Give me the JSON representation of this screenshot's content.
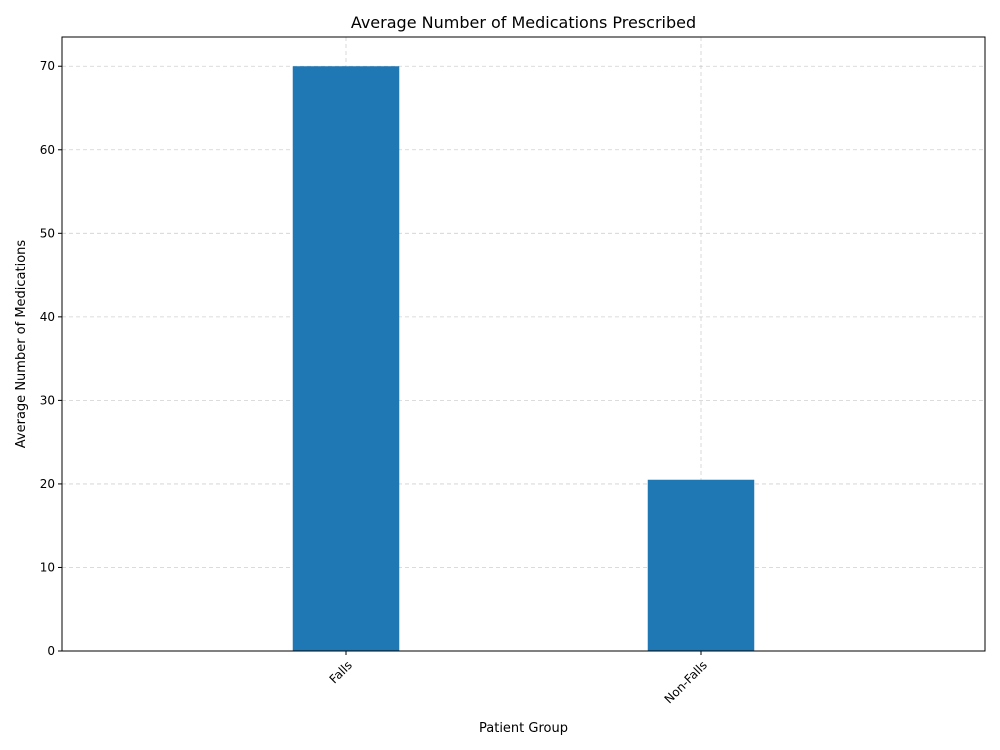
{
  "chart_data": {
    "type": "bar",
    "title": "Average Number of Medications Prescribed",
    "xlabel": "Patient Group",
    "ylabel": "Average Number of Medications",
    "categories": [
      "Falls",
      "Non-Falls"
    ],
    "values": [
      70,
      20.5
    ],
    "ylim": [
      0,
      73.5
    ],
    "yticks": [
      0,
      10,
      20,
      30,
      40,
      50,
      60,
      70
    ],
    "grid": true,
    "bar_color": "#1f77b4",
    "xtick_rotation": 45
  }
}
